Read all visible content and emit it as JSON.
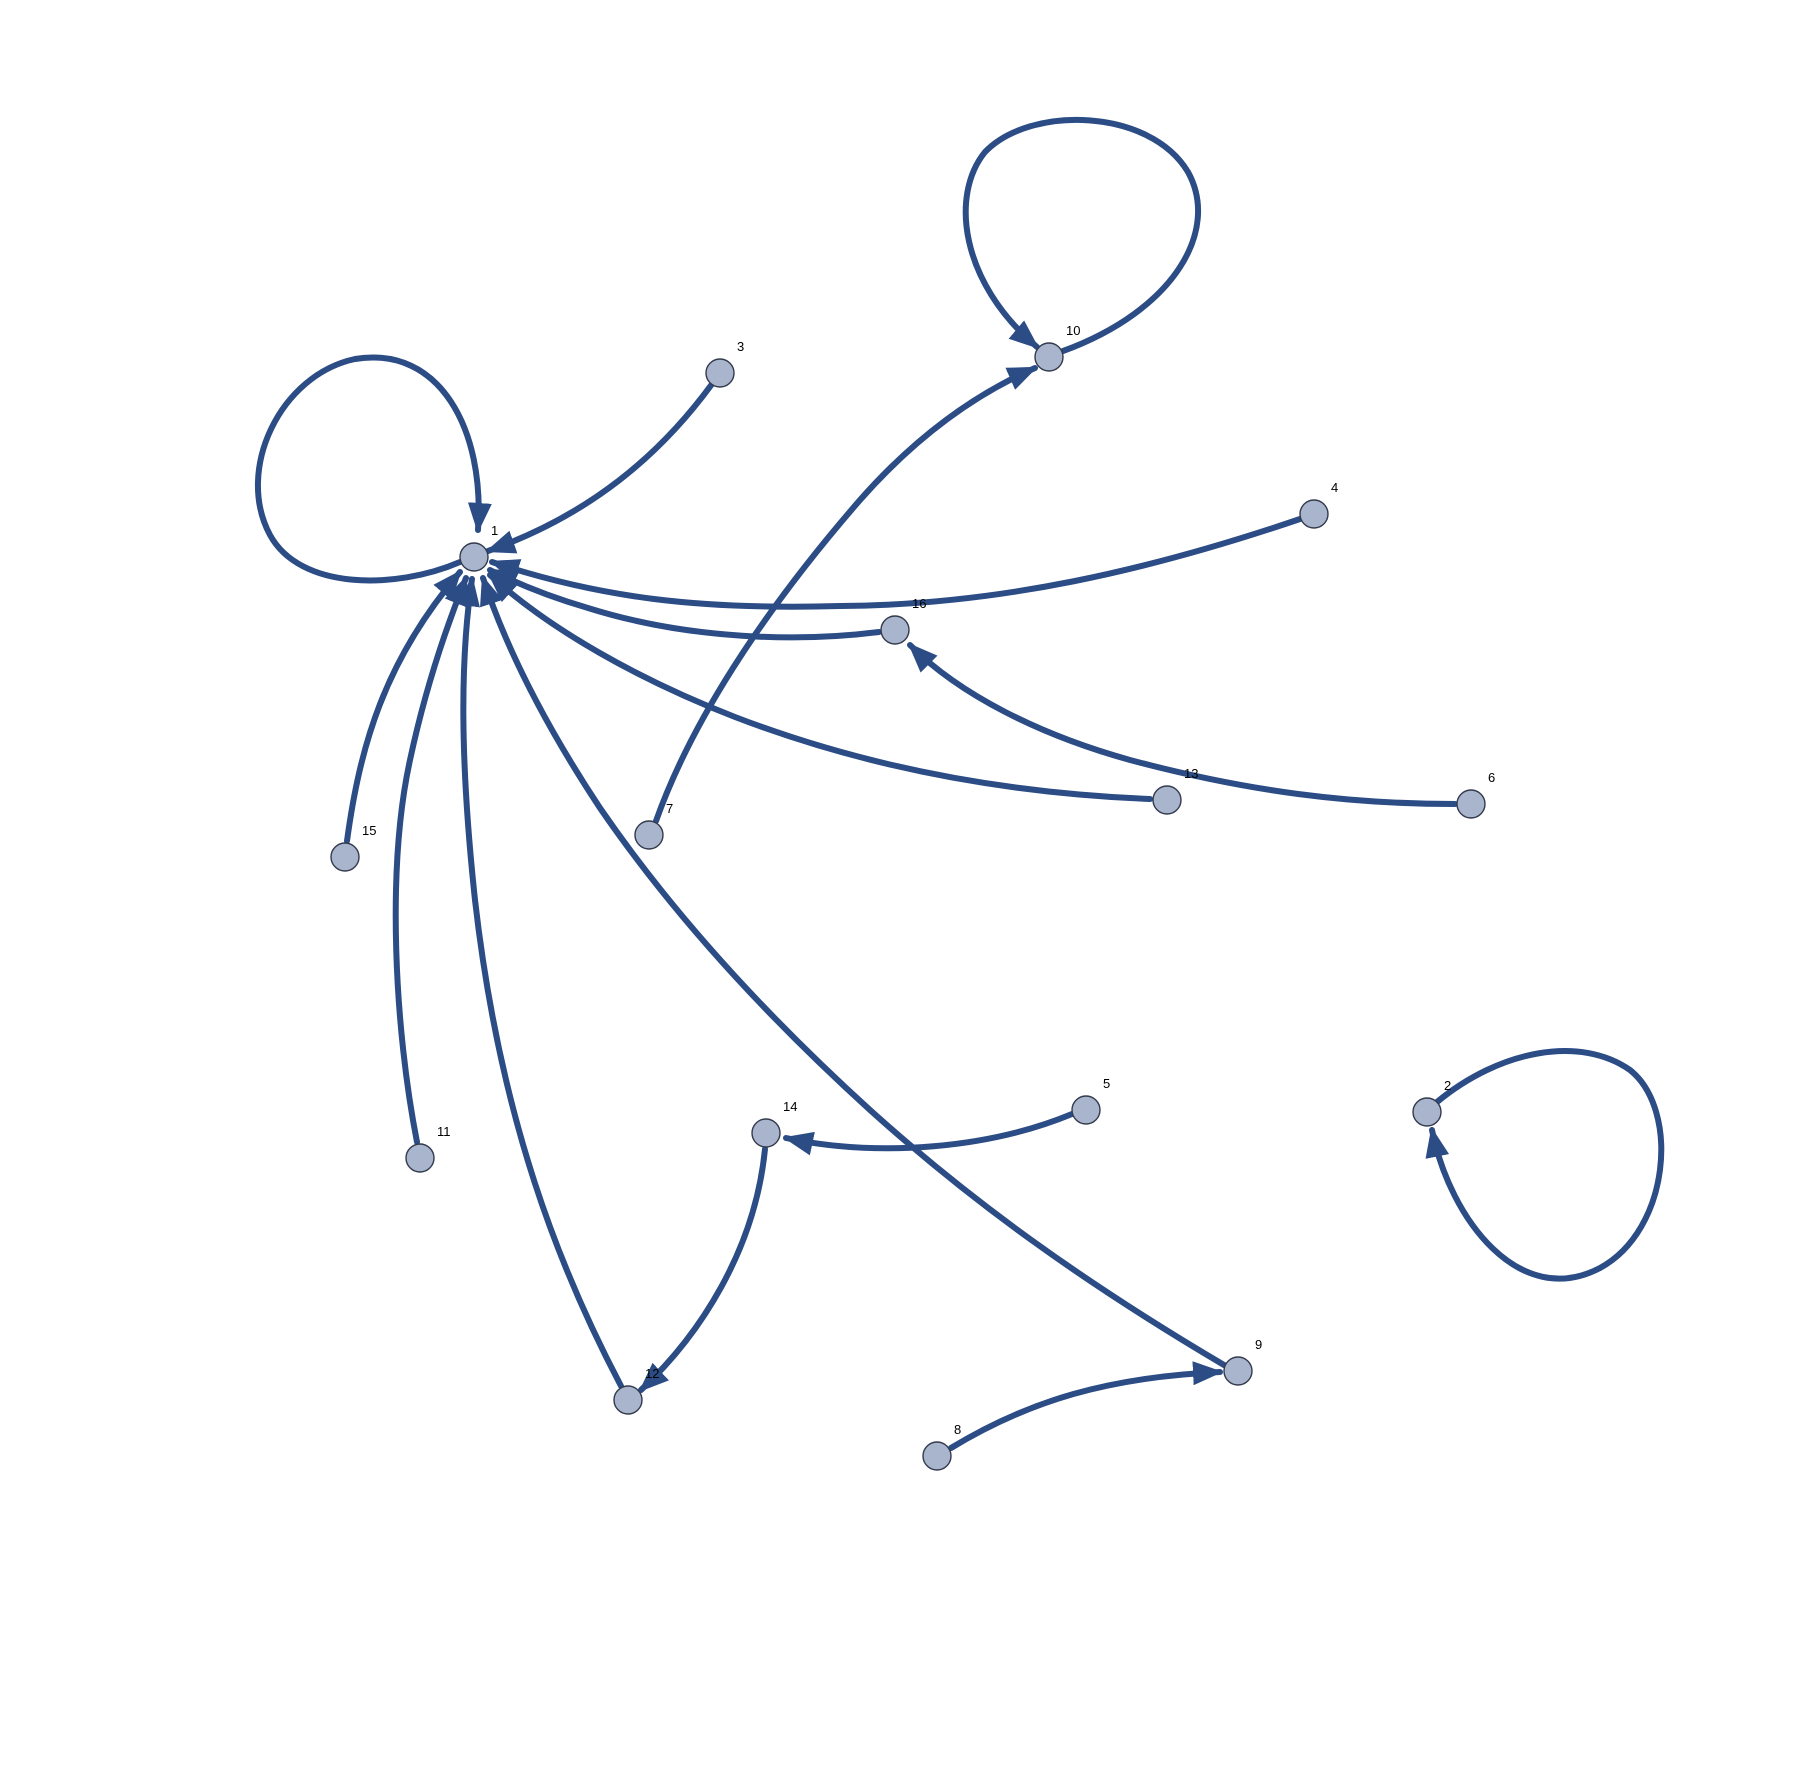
{
  "colors": {
    "edge": "#2b4c85",
    "node_fill": "#a8b5cc",
    "node_stroke": "#333a4d",
    "label": "#000000"
  },
  "nodes": [
    {
      "id": "1",
      "label": "1"
    },
    {
      "id": "2",
      "label": "2"
    },
    {
      "id": "3",
      "label": "3"
    },
    {
      "id": "4",
      "label": "4"
    },
    {
      "id": "5",
      "label": "5"
    },
    {
      "id": "6",
      "label": "6"
    },
    {
      "id": "7",
      "label": "7"
    },
    {
      "id": "8",
      "label": "8"
    },
    {
      "id": "9",
      "label": "9"
    },
    {
      "id": "10",
      "label": "10"
    },
    {
      "id": "11",
      "label": "11"
    },
    {
      "id": "12",
      "label": "12"
    },
    {
      "id": "13",
      "label": "13"
    },
    {
      "id": "14",
      "label": "14"
    },
    {
      "id": "15",
      "label": "15"
    },
    {
      "id": "16",
      "label": "16"
    }
  ],
  "edges": [
    {
      "from": "1",
      "to": "1"
    },
    {
      "from": "3",
      "to": "1"
    },
    {
      "from": "4",
      "to": "1"
    },
    {
      "from": "16",
      "to": "1"
    },
    {
      "from": "13",
      "to": "1"
    },
    {
      "from": "9",
      "to": "1"
    },
    {
      "from": "12",
      "to": "1"
    },
    {
      "from": "11",
      "to": "1"
    },
    {
      "from": "15",
      "to": "1"
    },
    {
      "from": "10",
      "to": "10"
    },
    {
      "from": "7",
      "to": "10"
    },
    {
      "from": "6",
      "to": "16"
    },
    {
      "from": "5",
      "to": "14"
    },
    {
      "from": "14",
      "to": "12"
    },
    {
      "from": "8",
      "to": "9"
    },
    {
      "from": "2",
      "to": "2"
    }
  ]
}
